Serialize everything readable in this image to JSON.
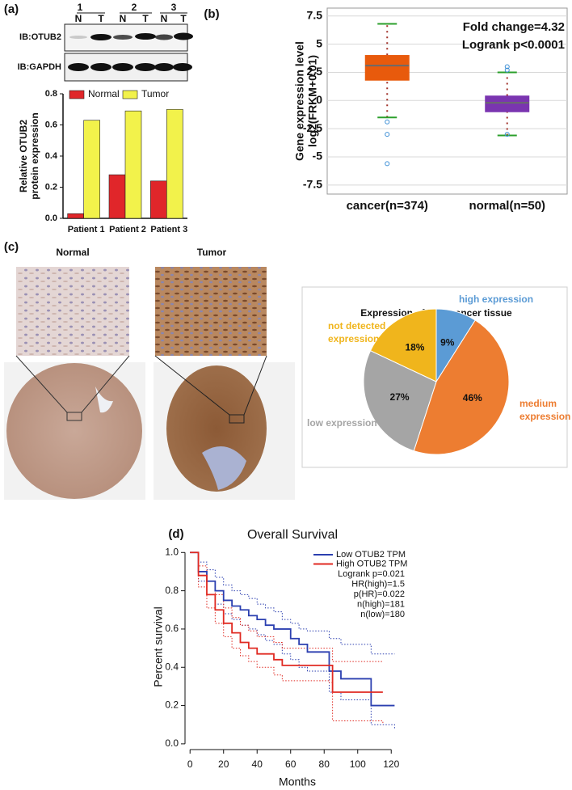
{
  "chart_data": [
    {
      "type": "bar",
      "panel_label": "(a)",
      "ylabel": [
        "Relative OTUB2",
        "protein expression"
      ],
      "categories": [
        "Patient 1",
        "Patient 2",
        "Patient 3"
      ],
      "series": [
        {
          "name": "Normal",
          "color": "#e0262a",
          "values": [
            0.03,
            0.28,
            0.24
          ]
        },
        {
          "name": "Tumor",
          "color": "#f2f24b",
          "values": [
            0.63,
            0.69,
            0.7
          ]
        }
      ],
      "ylim": [
        0,
        0.8
      ],
      "yticks": [
        {
          "value": 0,
          "label": "0.0"
        },
        0.2,
        0.4,
        0.6,
        0.8
      ]
    },
    {
      "type": "box",
      "panel_label": "(b)",
      "ylabel": [
        "Gene expression level",
        "log2(FRKM+0.01)"
      ],
      "annotations": [
        "Fold change=4.32",
        "Logrank p<0.0001"
      ],
      "categories": [
        "cancer(n=374)",
        "normal(n=50)"
      ],
      "colors": [
        "#e85a0c",
        "#7a35b0"
      ],
      "boxes": [
        {
          "whislo": -1.5,
          "q1": 1.8,
          "med": 3.1,
          "q3": 4.0,
          "whishi": 6.8,
          "fliers": [
            -1.9,
            -3.0,
            -5.6
          ]
        },
        {
          "whislo": -3.1,
          "q1": -1.0,
          "med": -0.2,
          "q3": 0.4,
          "whishi": 2.5,
          "fliers": [
            3.0,
            2.7,
            -3.0
          ]
        }
      ],
      "ylim": [
        -8.3,
        8.2
      ],
      "yticks": [
        -7.5,
        -5,
        -2.5,
        0,
        2.5,
        5,
        7.5
      ],
      "grid": true
    },
    {
      "type": "pie",
      "panel_label": "(c)",
      "title": "Expression of  liver cancer tissue",
      "labels": [
        [
          "high expression"
        ],
        [
          "medium",
          "expression"
        ],
        [
          "low expression"
        ],
        [
          "not detected",
          "expression"
        ]
      ],
      "values": [
        9,
        46,
        27,
        18
      ],
      "value_labels": [
        "9%",
        "46%",
        "27%",
        "18%"
      ],
      "colors": [
        "#5b9bd5",
        "#ed7d31",
        "#a5a5a5",
        "#f0b51c"
      ]
    },
    {
      "type": "line",
      "panel_label": "(d)",
      "title": "Overall Survival",
      "xlabel": "Months",
      "ylabel": "Percent survival",
      "step": true,
      "series": [
        {
          "name": "Low OTUB2 TPM",
          "color": "#2b3fb0",
          "x": [
            0,
            5,
            10,
            15,
            20,
            25,
            30,
            35,
            40,
            45,
            50,
            55,
            60,
            65,
            70,
            83,
            90,
            104,
            108,
            122
          ],
          "values": [
            1.0,
            0.9,
            0.85,
            0.8,
            0.75,
            0.72,
            0.7,
            0.67,
            0.65,
            0.62,
            0.6,
            0.6,
            0.55,
            0.52,
            0.48,
            0.38,
            0.34,
            0.34,
            0.2,
            0.2
          ],
          "ci_upper": [
            1.0,
            0.95,
            0.91,
            0.87,
            0.83,
            0.8,
            0.78,
            0.76,
            0.73,
            0.71,
            0.69,
            0.65,
            0.63,
            0.6,
            0.59,
            0.55,
            0.52,
            0.52,
            0.47,
            0.47
          ],
          "ci_lower": [
            1.0,
            0.85,
            0.78,
            0.73,
            0.68,
            0.65,
            0.62,
            0.6,
            0.57,
            0.54,
            0.52,
            0.47,
            0.44,
            0.4,
            0.38,
            0.27,
            0.23,
            0.23,
            0.1,
            0.08
          ]
        },
        {
          "name": "High OTUB2 TPM",
          "color": "#e02a22",
          "x": [
            0,
            5,
            10,
            15,
            20,
            25,
            30,
            35,
            40,
            50,
            55,
            83,
            85,
            115
          ],
          "values": [
            1.0,
            0.88,
            0.78,
            0.7,
            0.63,
            0.58,
            0.53,
            0.5,
            0.47,
            0.44,
            0.41,
            0.41,
            0.27,
            0.27
          ],
          "ci_upper": [
            1.0,
            0.93,
            0.85,
            0.78,
            0.71,
            0.66,
            0.62,
            0.59,
            0.56,
            0.53,
            0.5,
            0.5,
            0.43,
            0.43
          ],
          "ci_lower": [
            1.0,
            0.82,
            0.71,
            0.63,
            0.56,
            0.5,
            0.46,
            0.43,
            0.4,
            0.36,
            0.33,
            0.32,
            0.12,
            0.1
          ]
        }
      ],
      "annotations": [
        "Logrank p=0.021",
        "HR(high)=1.5",
        "p(HR)=0.022",
        "n(high)=181",
        "n(low)=180"
      ],
      "xlim": [
        -3,
        130
      ],
      "xticks": [
        0,
        20,
        40,
        60,
        80,
        100,
        120
      ],
      "ylim": [
        -0.03,
        1.035
      ],
      "yticks": [
        {
          "value": 0,
          "label": "0.0"
        },
        0.2,
        0.4,
        0.6,
        0.8,
        {
          "value": 1,
          "label": "1.0"
        }
      ]
    }
  ],
  "blot": {
    "lanes": [
      "1",
      "2",
      "3"
    ],
    "lane_types": [
      "N",
      "T",
      "N",
      "T",
      "N",
      "T"
    ],
    "rows": [
      "IB:OTUB2",
      "IB:GAPDH"
    ]
  },
  "tissue": {
    "labels": [
      "Normal",
      "Tumor"
    ]
  }
}
